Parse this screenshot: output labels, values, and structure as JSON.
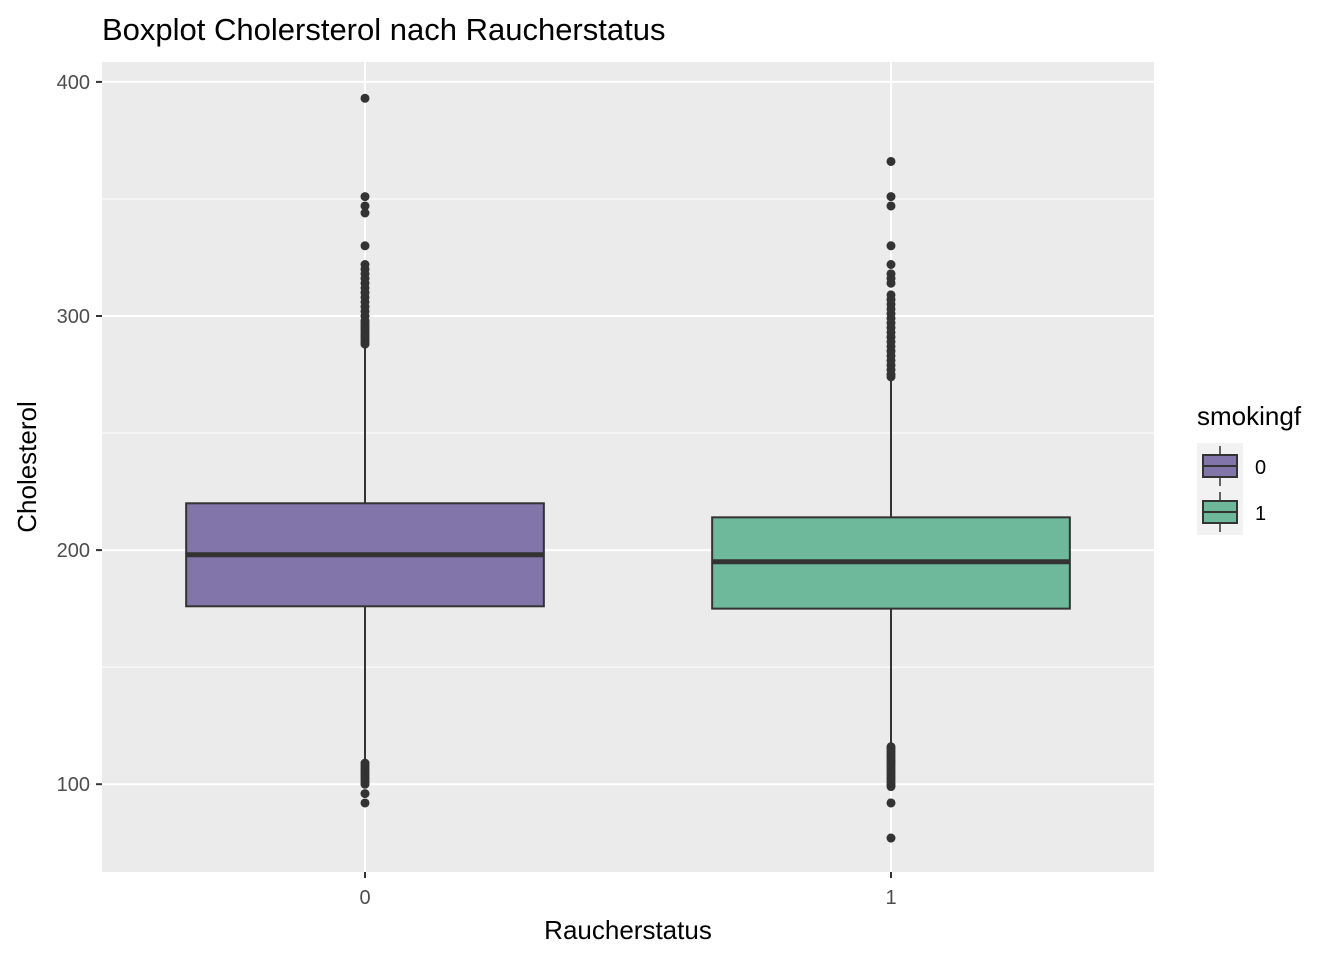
{
  "chart_data": {
    "type": "boxplot",
    "title": "Boxplot Cholersterol nach Raucherstatus",
    "xlabel": "Raucherstatus",
    "ylabel": "Cholesterol",
    "categories": [
      "0",
      "1"
    ],
    "ylim": [
      62.5,
      408.5
    ],
    "yticks": [
      100,
      200,
      300,
      400
    ],
    "y_minor_ticks": [
      150,
      250,
      350
    ],
    "grid": true,
    "background": "#EBEBEB",
    "legend": {
      "title": "smokingf",
      "position": "right",
      "entries": [
        {
          "label": "0",
          "color": "#8175AA"
        },
        {
          "label": "1",
          "color": "#6EB99B"
        }
      ]
    },
    "series": [
      {
        "category": "0",
        "color": "#8175AA",
        "q1": 176,
        "median": 198,
        "q3": 220,
        "whisker_low": 110,
        "whisker_high": 287,
        "outliers": [
          393,
          351,
          347,
          344,
          330,
          322,
          320,
          318,
          316,
          314,
          312,
          310,
          308,
          306,
          304,
          302,
          300,
          298,
          297,
          296,
          295,
          294,
          293,
          292,
          291,
          290,
          289,
          288,
          109,
          108,
          107,
          106,
          105,
          104,
          103,
          102,
          101,
          100,
          96,
          92
        ]
      },
      {
        "category": "1",
        "color": "#6EB99B",
        "q1": 175,
        "median": 195,
        "q3": 214,
        "whisker_low": 117,
        "whisker_high": 273,
        "outliers": [
          366,
          351,
          347,
          330,
          322,
          318,
          316,
          314,
          309,
          307,
          305,
          303,
          301,
          299,
          297,
          295,
          293,
          291,
          289,
          287,
          285,
          283,
          281,
          279,
          277,
          275,
          274,
          116,
          115,
          114,
          113,
          112,
          111,
          110,
          109,
          108,
          107,
          106,
          105,
          104,
          103,
          102,
          101,
          100,
          99,
          92,
          77
        ]
      }
    ]
  }
}
